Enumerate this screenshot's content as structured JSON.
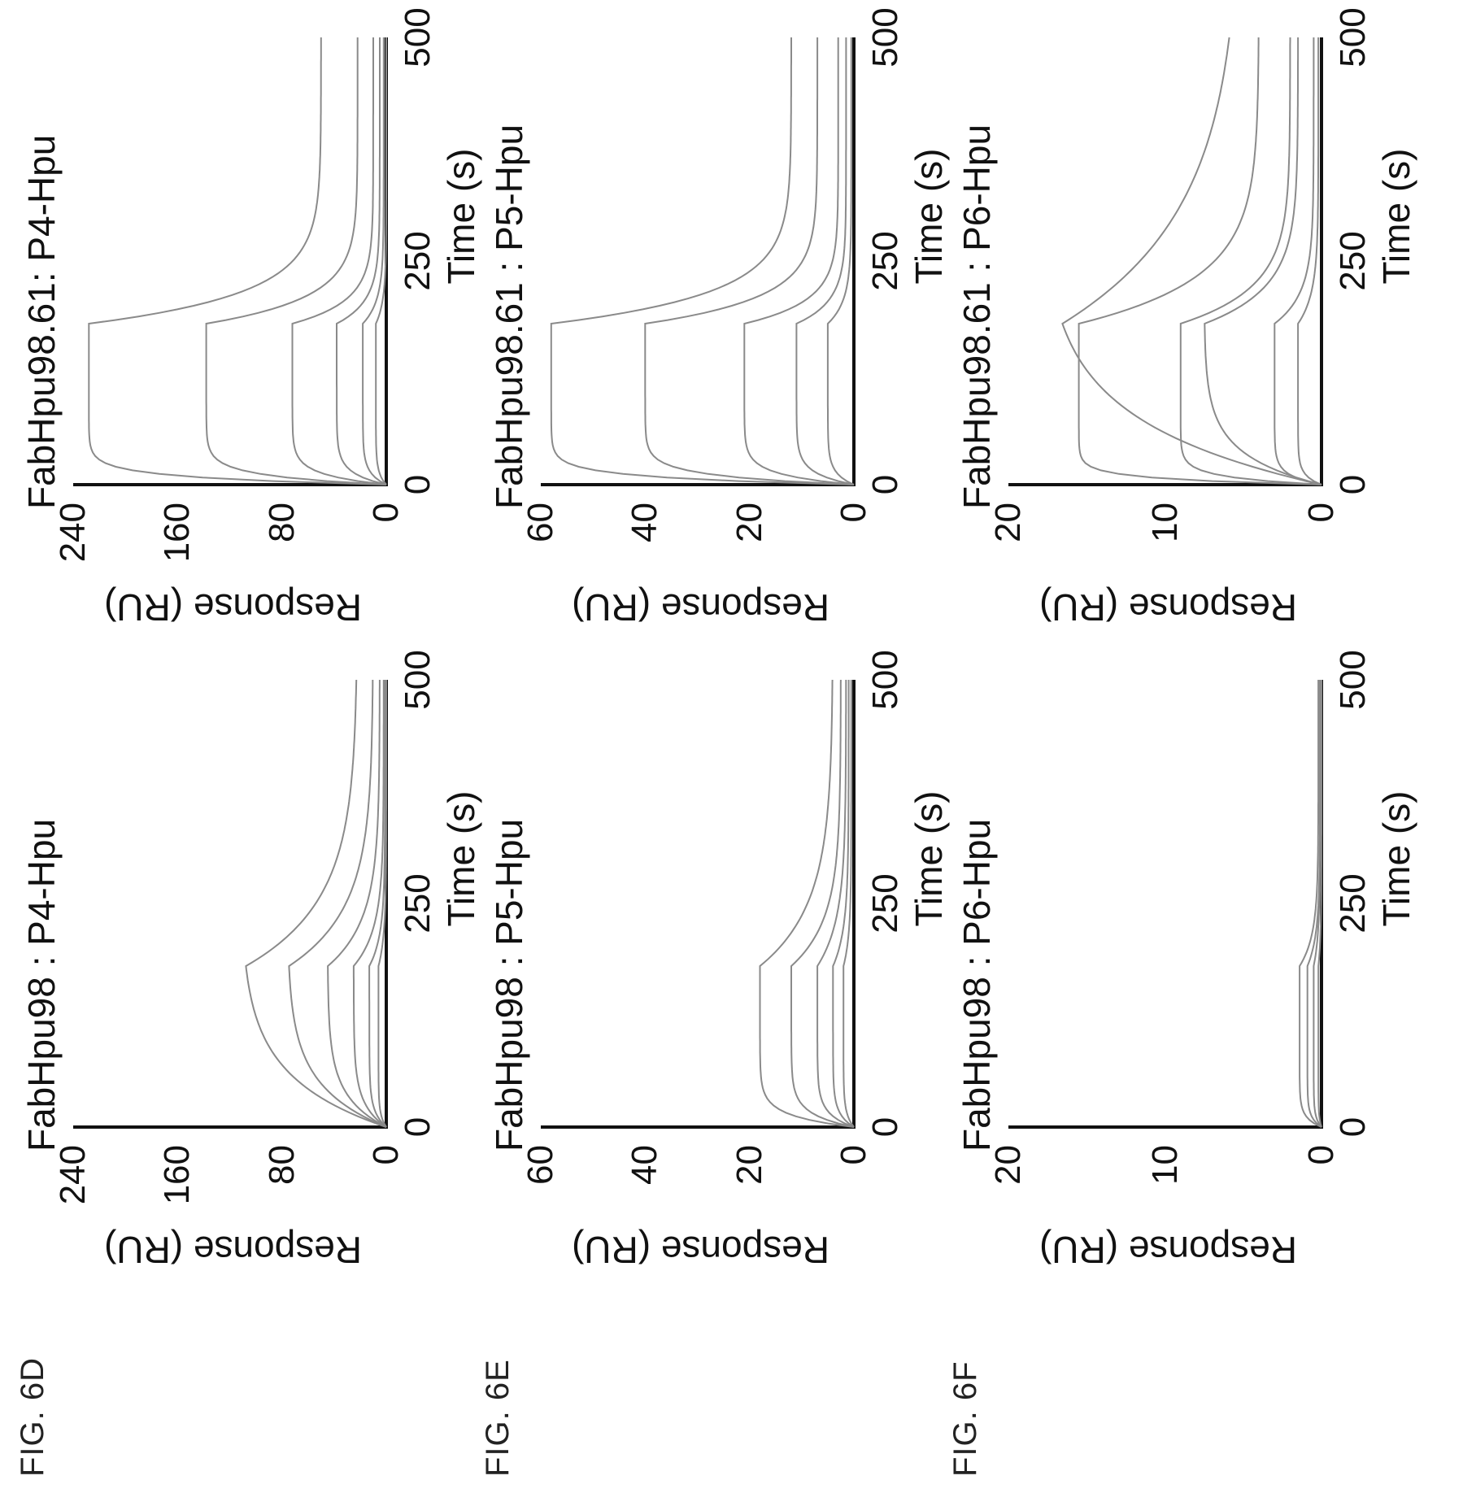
{
  "chart_data": [
    {
      "figure": "FIG. 6D",
      "type": "line",
      "title": "FabHpu98 : P4-Hpu",
      "xlabel": "Time (s)",
      "ylabel": "Response (RU)",
      "xlim": [
        0,
        500
      ],
      "ylim": [
        0,
        240
      ],
      "xticks": [
        "0",
        "250",
        "500"
      ],
      "yticks": [
        "0",
        "80",
        "160",
        "240"
      ],
      "x_unit_seconds": true,
      "series": [
        {
          "plateau": 112,
          "ka": 0.018,
          "kd": 0.014,
          "residual": 22
        },
        {
          "plateau": 76,
          "ka": 0.022,
          "kd": 0.016,
          "residual": 10
        },
        {
          "plateau": 45,
          "ka": 0.03,
          "kd": 0.02,
          "residual": 5
        },
        {
          "plateau": 25,
          "ka": 0.04,
          "kd": 0.025,
          "residual": 2
        },
        {
          "plateau": 13,
          "ka": 0.06,
          "kd": 0.03,
          "residual": 1
        },
        {
          "plateau": 6,
          "ka": 0.08,
          "kd": 0.03,
          "residual": 0
        }
      ],
      "injection_end": 180
    },
    {
      "figure": "FIG. 6D",
      "type": "line",
      "title": "FabHpu98.61: P4-Hpu",
      "xlabel": "Time (s)",
      "ylabel": "Response (RU)",
      "xlim": [
        0,
        500
      ],
      "ylim": [
        0,
        240
      ],
      "xticks": [
        "0",
        "250",
        "500"
      ],
      "yticks": [
        "0",
        "80",
        "160",
        "240"
      ],
      "series": [
        {
          "plateau": 228,
          "ka": 0.12,
          "kd": 0.03,
          "residual": 50
        },
        {
          "plateau": 138,
          "ka": 0.1,
          "kd": 0.035,
          "residual": 22
        },
        {
          "plateau": 72,
          "ka": 0.09,
          "kd": 0.04,
          "residual": 10
        },
        {
          "plateau": 38,
          "ka": 0.08,
          "kd": 0.04,
          "residual": 5
        },
        {
          "plateau": 18,
          "ka": 0.08,
          "kd": 0.04,
          "residual": 2
        },
        {
          "plateau": 8,
          "ka": 0.08,
          "kd": 0.04,
          "residual": 0
        }
      ],
      "injection_end": 180
    },
    {
      "figure": "FIG. 6E",
      "type": "line",
      "title": "FabHpu98 : P5-Hpu",
      "xlabel": "Time (s)",
      "ylabel": "Response (RU)",
      "xlim": [
        0,
        500
      ],
      "ylim": [
        0,
        60
      ],
      "xticks": [
        "0",
        "250",
        "500"
      ],
      "yticks": [
        "0",
        "20",
        "40",
        "60"
      ],
      "series": [
        {
          "plateau": 18,
          "ka": 0.08,
          "kd": 0.015,
          "residual": 4
        },
        {
          "plateau": 12,
          "ka": 0.07,
          "kd": 0.02,
          "residual": 2.5
        },
        {
          "plateau": 7,
          "ka": 0.07,
          "kd": 0.02,
          "residual": 1.5
        },
        {
          "plateau": 4,
          "ka": 0.07,
          "kd": 0.025,
          "residual": 1
        },
        {
          "plateau": 2,
          "ka": 0.07,
          "kd": 0.03,
          "residual": 0.5
        }
      ],
      "injection_end": 180
    },
    {
      "figure": "FIG. 6E",
      "type": "line",
      "title": "FabHpu98.61 : P5-Hpu",
      "xlabel": "Time (s)",
      "ylabel": "Response (RU)",
      "xlim": [
        0,
        500
      ],
      "ylim": [
        0,
        60
      ],
      "xticks": [
        "0",
        "250",
        "500"
      ],
      "yticks": [
        "0",
        "20",
        "40",
        "60"
      ],
      "series": [
        {
          "plateau": 58,
          "ka": 0.12,
          "kd": 0.03,
          "residual": 12
        },
        {
          "plateau": 40,
          "ka": 0.1,
          "kd": 0.035,
          "residual": 7
        },
        {
          "plateau": 21,
          "ka": 0.09,
          "kd": 0.04,
          "residual": 3
        },
        {
          "plateau": 11,
          "ka": 0.08,
          "kd": 0.04,
          "residual": 1.5
        },
        {
          "plateau": 5,
          "ka": 0.08,
          "kd": 0.04,
          "residual": 0.5
        }
      ],
      "injection_end": 180
    },
    {
      "figure": "FIG. 6F",
      "type": "line",
      "title": "FabHpu98 : P6-Hpu",
      "xlabel": "Time (s)",
      "ylabel": "Response (RU)",
      "xlim": [
        0,
        500
      ],
      "ylim": [
        0,
        20
      ],
      "xticks": [
        "0",
        "250",
        "500"
      ],
      "yticks": [
        "0",
        "10",
        "20"
      ],
      "series": [
        {
          "plateau": 1.4,
          "ka": 0.1,
          "kd": 0.03,
          "residual": 0.2
        },
        {
          "plateau": 0.9,
          "ka": 0.1,
          "kd": 0.03,
          "residual": 0.1
        },
        {
          "plateau": 0.5,
          "ka": 0.1,
          "kd": 0.03,
          "residual": 0.1
        },
        {
          "plateau": 0.2,
          "ka": 0.1,
          "kd": 0.03,
          "residual": 0
        }
      ],
      "injection_end": 180
    },
    {
      "figure": "FIG. 6F",
      "type": "line",
      "title": "FabHpu98.61 : P6-Hpu",
      "xlabel": "Time (s)",
      "ylabel": "Response (RU)",
      "xlim": [
        0,
        500
      ],
      "ylim": [
        0,
        20
      ],
      "xticks": [
        "0",
        "250",
        "500"
      ],
      "yticks": [
        "0",
        "10",
        "20"
      ],
      "series": [
        {
          "plateau": 18,
          "ka": 0.014,
          "kd": 0.008,
          "residual": 5
        },
        {
          "plateau": 15.5,
          "ka": 0.15,
          "kd": 0.02,
          "residual": 4
        },
        {
          "plateau": 9,
          "ka": 0.12,
          "kd": 0.025,
          "residual": 2
        },
        {
          "plateau": 7.5,
          "ka": 0.03,
          "kd": 0.025,
          "residual": 1.5
        },
        {
          "plateau": 3,
          "ka": 0.1,
          "kd": 0.03,
          "residual": 0.5
        },
        {
          "plateau": 1.5,
          "ka": 0.1,
          "kd": 0.03,
          "residual": 0.2
        }
      ],
      "injection_end": 180
    }
  ],
  "figure_labels": [
    "FIG. 6D",
    "FIG. 6E",
    "FIG. 6F"
  ],
  "colors": {
    "axis": "#111111",
    "curve": "#8a8a8a"
  }
}
